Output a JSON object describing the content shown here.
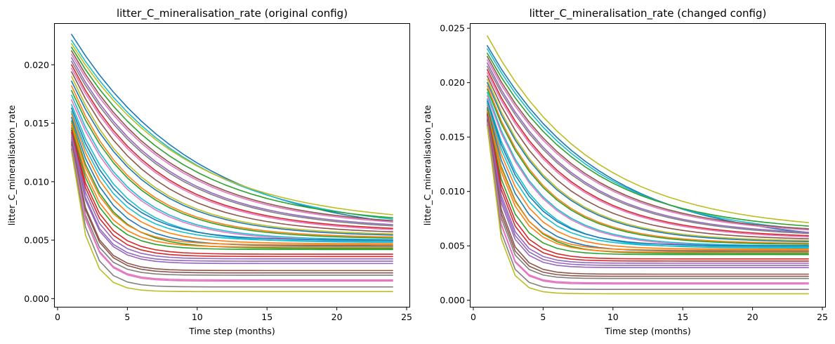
{
  "chart_data": [
    {
      "type": "line",
      "title": "litter_C_mineralisation_rate (original config)",
      "xlabel": "Time step (months)",
      "ylabel": "litter_C_mineralisation_rate",
      "xlim": [
        -0.2,
        25.2
      ],
      "ylim": [
        -0.0007,
        0.0235
      ],
      "xticks": [
        0,
        5,
        10,
        15,
        20,
        25
      ],
      "xtick_labels": [
        "0",
        "5",
        "10",
        "15",
        "20",
        "25"
      ],
      "yticks": [
        0.0,
        0.005,
        0.01,
        0.015,
        0.02
      ],
      "ytick_labels": [
        "0.000",
        "0.005",
        "0.010",
        "0.015",
        "0.020"
      ],
      "grid": false,
      "legend": "none",
      "x": [
        1,
        2,
        3,
        4,
        5,
        6,
        7,
        8,
        9,
        10,
        11,
        12,
        13,
        14,
        15,
        16,
        17,
        18,
        19,
        20,
        21,
        22,
        23,
        24
      ],
      "series_params": [
        {
          "start": 0.0226,
          "end": 0.0052,
          "tau": 9.0,
          "color": "#1f77b4"
        },
        {
          "start": 0.0221,
          "end": 0.0057,
          "tau": 8.5,
          "color": "#17becf"
        },
        {
          "start": 0.0218,
          "end": 0.0063,
          "tau": 8.0,
          "color": "#bcbd22"
        },
        {
          "start": 0.0215,
          "end": 0.0062,
          "tau": 7.5,
          "color": "#2ca02c"
        },
        {
          "start": 0.0212,
          "end": 0.0061,
          "tau": 7.0,
          "color": "#8c564b"
        },
        {
          "start": 0.0209,
          "end": 0.006,
          "tau": 7.0,
          "color": "#e377c2"
        },
        {
          "start": 0.0206,
          "end": 0.0059,
          "tau": 6.5,
          "color": "#9467bd"
        },
        {
          "start": 0.0203,
          "end": 0.0058,
          "tau": 6.5,
          "color": "#7f7f7f"
        },
        {
          "start": 0.02,
          "end": 0.0057,
          "tau": 6.0,
          "color": "#d62728"
        },
        {
          "start": 0.0197,
          "end": 0.0056,
          "tau": 6.0,
          "color": "#e377c2"
        },
        {
          "start": 0.0194,
          "end": 0.0055,
          "tau": 5.5,
          "color": "#8c564b"
        },
        {
          "start": 0.019,
          "end": 0.0054,
          "tau": 5.0,
          "color": "#bcbd22"
        },
        {
          "start": 0.0186,
          "end": 0.0053,
          "tau": 5.0,
          "color": "#1f77b4"
        },
        {
          "start": 0.0182,
          "end": 0.0052,
          "tau": 4.5,
          "color": "#ff7f0e"
        },
        {
          "start": 0.0178,
          "end": 0.0051,
          "tau": 4.5,
          "color": "#2ca02c"
        },
        {
          "start": 0.0174,
          "end": 0.005,
          "tau": 4.0,
          "color": "#17becf"
        },
        {
          "start": 0.017,
          "end": 0.0049,
          "tau": 4.0,
          "color": "#e377c2"
        },
        {
          "start": 0.0166,
          "end": 0.0048,
          "tau": 3.5,
          "color": "#17becf"
        },
        {
          "start": 0.0163,
          "end": 0.005,
          "tau": 3.2,
          "color": "#1f77b4"
        },
        {
          "start": 0.016,
          "end": 0.0049,
          "tau": 3.0,
          "color": "#17becf"
        },
        {
          "start": 0.0158,
          "end": 0.0047,
          "tau": 2.8,
          "color": "#ff7f0e"
        },
        {
          "start": 0.0155,
          "end": 0.0045,
          "tau": 2.6,
          "color": "#1f77b4"
        },
        {
          "start": 0.0152,
          "end": 0.0043,
          "tau": 2.4,
          "color": "#2ca02c"
        },
        {
          "start": 0.015,
          "end": 0.0046,
          "tau": 2.2,
          "color": "#ff7f0e"
        },
        {
          "start": 0.0148,
          "end": 0.0044,
          "tau": 2.0,
          "color": "#ff7f0e"
        },
        {
          "start": 0.0146,
          "end": 0.0042,
          "tau": 1.9,
          "color": "#2ca02c"
        },
        {
          "start": 0.0144,
          "end": 0.0038,
          "tau": 1.8,
          "color": "#d62728"
        },
        {
          "start": 0.0142,
          "end": 0.0036,
          "tau": 1.7,
          "color": "#d62728"
        },
        {
          "start": 0.014,
          "end": 0.0034,
          "tau": 1.6,
          "color": "#9467bd"
        },
        {
          "start": 0.0138,
          "end": 0.0032,
          "tau": 1.5,
          "color": "#9467bd"
        },
        {
          "start": 0.0136,
          "end": 0.003,
          "tau": 1.5,
          "color": "#9467bd"
        },
        {
          "start": 0.0134,
          "end": 0.0024,
          "tau": 1.4,
          "color": "#8c564b"
        },
        {
          "start": 0.0132,
          "end": 0.0022,
          "tau": 1.4,
          "color": "#8c564b"
        },
        {
          "start": 0.0131,
          "end": 0.002,
          "tau": 1.3,
          "color": "#7f7f7f"
        },
        {
          "start": 0.013,
          "end": 0.0016,
          "tau": 1.3,
          "color": "#e377c2"
        },
        {
          "start": 0.0129,
          "end": 0.0015,
          "tau": 1.3,
          "color": "#e377c2"
        },
        {
          "start": 0.0128,
          "end": 0.001,
          "tau": 1.2,
          "color": "#7f7f7f"
        },
        {
          "start": 0.0126,
          "end": 0.0006,
          "tau": 1.1,
          "color": "#bcbd22"
        }
      ]
    },
    {
      "type": "line",
      "title": "litter_C_mineralisation_rate (changed config)",
      "xlabel": "Time step (months)",
      "ylabel": "litter_C_mineralisation_rate",
      "xlim": [
        -0.2,
        25.2
      ],
      "ylim": [
        -0.0006,
        0.0254
      ],
      "xticks": [
        0,
        5,
        10,
        15,
        20,
        25
      ],
      "xtick_labels": [
        "0",
        "5",
        "10",
        "15",
        "20",
        "25"
      ],
      "yticks": [
        0.0,
        0.005,
        0.01,
        0.015,
        0.02,
        0.025
      ],
      "ytick_labels": [
        "0.000",
        "0.005",
        "0.010",
        "0.015",
        "0.020",
        "0.025"
      ],
      "grid": false,
      "legend": "none",
      "x": [
        1,
        2,
        3,
        4,
        5,
        6,
        7,
        8,
        9,
        10,
        11,
        12,
        13,
        14,
        15,
        16,
        17,
        18,
        19,
        20,
        21,
        22,
        23,
        24
      ],
      "series_params": [
        {
          "start": 0.0243,
          "end": 0.0063,
          "tau": 7.5,
          "color": "#bcbd22"
        },
        {
          "start": 0.0234,
          "end": 0.0052,
          "tau": 8.0,
          "color": "#1f77b4"
        },
        {
          "start": 0.0231,
          "end": 0.0057,
          "tau": 7.5,
          "color": "#17becf"
        },
        {
          "start": 0.0227,
          "end": 0.0062,
          "tau": 7.0,
          "color": "#2ca02c"
        },
        {
          "start": 0.0224,
          "end": 0.0061,
          "tau": 6.5,
          "color": "#8c564b"
        },
        {
          "start": 0.0221,
          "end": 0.006,
          "tau": 6.5,
          "color": "#e377c2"
        },
        {
          "start": 0.0218,
          "end": 0.0059,
          "tau": 6.0,
          "color": "#9467bd"
        },
        {
          "start": 0.0215,
          "end": 0.0058,
          "tau": 6.0,
          "color": "#7f7f7f"
        },
        {
          "start": 0.0212,
          "end": 0.0057,
          "tau": 5.5,
          "color": "#d62728"
        },
        {
          "start": 0.0209,
          "end": 0.0056,
          "tau": 5.5,
          "color": "#e377c2"
        },
        {
          "start": 0.0206,
          "end": 0.0055,
          "tau": 5.0,
          "color": "#8c564b"
        },
        {
          "start": 0.0203,
          "end": 0.0054,
          "tau": 4.5,
          "color": "#bcbd22"
        },
        {
          "start": 0.02,
          "end": 0.0053,
          "tau": 4.5,
          "color": "#1f77b4"
        },
        {
          "start": 0.0197,
          "end": 0.0052,
          "tau": 4.0,
          "color": "#ff7f0e"
        },
        {
          "start": 0.0194,
          "end": 0.0051,
          "tau": 4.0,
          "color": "#2ca02c"
        },
        {
          "start": 0.0191,
          "end": 0.005,
          "tau": 3.5,
          "color": "#17becf"
        },
        {
          "start": 0.0188,
          "end": 0.0049,
          "tau": 3.5,
          "color": "#e377c2"
        },
        {
          "start": 0.0185,
          "end": 0.0048,
          "tau": 3.0,
          "color": "#17becf"
        },
        {
          "start": 0.0183,
          "end": 0.005,
          "tau": 2.8,
          "color": "#1f77b4"
        },
        {
          "start": 0.0181,
          "end": 0.0049,
          "tau": 2.6,
          "color": "#17becf"
        },
        {
          "start": 0.0179,
          "end": 0.0047,
          "tau": 2.4,
          "color": "#ff7f0e"
        },
        {
          "start": 0.0177,
          "end": 0.0045,
          "tau": 2.2,
          "color": "#1f77b4"
        },
        {
          "start": 0.0175,
          "end": 0.0043,
          "tau": 2.0,
          "color": "#2ca02c"
        },
        {
          "start": 0.0174,
          "end": 0.0046,
          "tau": 1.9,
          "color": "#ff7f0e"
        },
        {
          "start": 0.0173,
          "end": 0.0044,
          "tau": 1.8,
          "color": "#ff7f0e"
        },
        {
          "start": 0.0172,
          "end": 0.0042,
          "tau": 1.6,
          "color": "#2ca02c"
        },
        {
          "start": 0.0171,
          "end": 0.0038,
          "tau": 1.5,
          "color": "#d62728"
        },
        {
          "start": 0.017,
          "end": 0.0036,
          "tau": 1.4,
          "color": "#d62728"
        },
        {
          "start": 0.0169,
          "end": 0.0034,
          "tau": 1.3,
          "color": "#9467bd"
        },
        {
          "start": 0.0168,
          "end": 0.0032,
          "tau": 1.25,
          "color": "#9467bd"
        },
        {
          "start": 0.0167,
          "end": 0.003,
          "tau": 1.2,
          "color": "#9467bd"
        },
        {
          "start": 0.0166,
          "end": 0.0024,
          "tau": 1.15,
          "color": "#8c564b"
        },
        {
          "start": 0.0165,
          "end": 0.0022,
          "tau": 1.1,
          "color": "#8c564b"
        },
        {
          "start": 0.0164,
          "end": 0.002,
          "tau": 1.05,
          "color": "#7f7f7f"
        },
        {
          "start": 0.0163,
          "end": 0.0016,
          "tau": 1.0,
          "color": "#e377c2"
        },
        {
          "start": 0.0162,
          "end": 0.0015,
          "tau": 1.0,
          "color": "#e377c2"
        },
        {
          "start": 0.0161,
          "end": 0.001,
          "tau": 0.95,
          "color": "#7f7f7f"
        },
        {
          "start": 0.016,
          "end": 0.0006,
          "tau": 0.9,
          "color": "#bcbd22"
        }
      ]
    }
  ]
}
